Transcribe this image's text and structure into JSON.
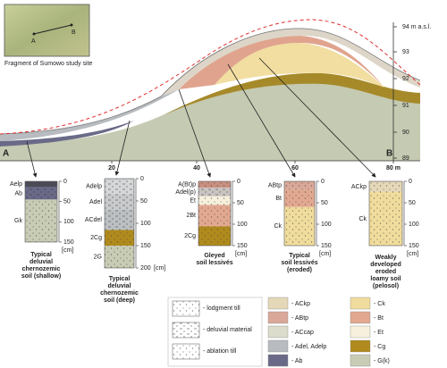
{
  "inset": {
    "caption": "Fragment of Sumowo study site",
    "point_a": "A",
    "point_b": "B"
  },
  "section": {
    "elevation_labels": [
      "94 m a.s.l.",
      "93",
      "92",
      "91",
      "90",
      "89"
    ],
    "distance_labels": [
      "20",
      "40",
      "60",
      "80 m"
    ],
    "end_a": "A",
    "end_b": "B"
  },
  "profiles": [
    {
      "horizons": [
        "Aelp",
        "Ab",
        "Gk"
      ],
      "depths": [
        "0",
        "50",
        "100",
        "150"
      ],
      "unit": "[cm]",
      "caption": [
        "Typical",
        "deluvial",
        "chernozemic",
        "soil (shallow)"
      ]
    },
    {
      "horizons": [
        "Adelp",
        "Adel",
        "ACdel",
        "2Cg",
        "2G"
      ],
      "depths": [
        "0",
        "50",
        "100",
        "150",
        "200"
      ],
      "unit": "[cm]",
      "caption": [
        "Typical",
        "deluvial",
        "chernozemic",
        "soil (deep)"
      ]
    },
    {
      "horizons": [
        "A(Bt)p",
        "Adel(p)",
        "Et",
        "2Bt",
        "2Cg"
      ],
      "depths": [
        "0",
        "50",
        "100",
        "150"
      ],
      "unit": "[cm]",
      "caption": [
        "Gleyed",
        "soil lessivés"
      ]
    },
    {
      "horizons": [
        "ABtp",
        "Bt",
        "Ck"
      ],
      "depths": [
        "0",
        "50",
        "100",
        "150"
      ],
      "unit": "[cm]",
      "caption": [
        "Typical",
        "soil lessivés",
        "(eroded)"
      ]
    },
    {
      "horizons": [
        "ACkp",
        "Ck"
      ],
      "depths": [
        "0",
        "50",
        "100",
        "150"
      ],
      "unit": "[cm]",
      "caption": [
        "Weakly",
        "developed",
        "eroded",
        "loamy soil",
        "(pelosol)"
      ]
    }
  ],
  "legend": {
    "materials": [
      "- lodgment till",
      "- deluvial material",
      "- ablation till"
    ],
    "horizons_left": [
      "- ACkp",
      "- ABtp",
      "- ACcap",
      "- Adel, Adelp",
      "- Ab"
    ],
    "horizons_right": [
      "- Ck",
      "- Bt",
      "- Et",
      "- Cg",
      "- G(k)"
    ]
  }
}
